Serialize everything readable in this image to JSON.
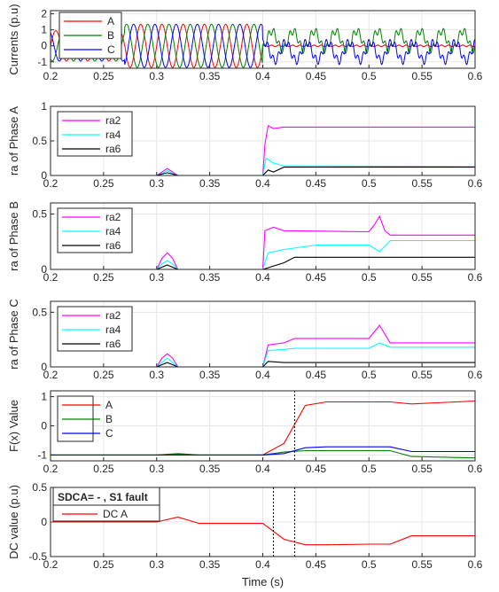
{
  "xlabel": "Time (s)",
  "x_ticks": [
    "0.2",
    "0.25",
    "0.3",
    "0.35",
    "0.4",
    "0.45",
    "0.5",
    "0.55",
    "0.6"
  ],
  "xlim": [
    0.2,
    0.6
  ],
  "colors": {
    "red": "#ff0000",
    "green": "#008000",
    "blue": "#0000ff",
    "magenta": "#ff00ff",
    "cyan": "#00ffff",
    "black": "#000000",
    "axis": "#262626",
    "grid": "#e6e6e6"
  },
  "chart_data": [
    {
      "type": "line",
      "ylabel": "Currents (p.u)",
      "ylim": [
        -1.4,
        2.2
      ],
      "yticks": [
        -1,
        0,
        1,
        2
      ],
      "legend_position": "top-left",
      "series": [
        {
          "name": "A",
          "color": "#ff0000",
          "description": "three-phase currents; amplitude ~0.95 before 0.27 s, ~1.35 between 0.27 s and 0.40 s; after 0.40 s phase A ~0 (open) with small ripple"
        },
        {
          "name": "B",
          "color": "#008000"
        },
        {
          "name": "C",
          "color": "#0000ff"
        }
      ]
    },
    {
      "type": "line",
      "ylabel": "ra of Phase A",
      "ylim": [
        0,
        1
      ],
      "yticks": [
        0,
        0.5,
        1
      ],
      "legend_position": "top-left",
      "series": [
        {
          "name": "ra2",
          "color": "#ff00ff",
          "x": [
            0.2,
            0.3,
            0.305,
            0.31,
            0.315,
            0.32,
            0.4,
            0.402,
            0.405,
            0.41,
            0.42,
            0.6
          ],
          "y": [
            0,
            0,
            0.05,
            0.1,
            0.05,
            0,
            0,
            0.45,
            0.72,
            0.68,
            0.7,
            0.7
          ]
        },
        {
          "name": "ra4",
          "color": "#00ffff",
          "x": [
            0.2,
            0.3,
            0.305,
            0.31,
            0.315,
            0.32,
            0.4,
            0.403,
            0.41,
            0.42,
            0.6
          ],
          "y": [
            0,
            0,
            0.03,
            0.07,
            0.03,
            0,
            0,
            0.25,
            0.18,
            0.14,
            0.13
          ]
        },
        {
          "name": "ra6",
          "color": "#000000",
          "x": [
            0.2,
            0.3,
            0.305,
            0.31,
            0.315,
            0.32,
            0.4,
            0.405,
            0.41,
            0.42,
            0.6
          ],
          "y": [
            0,
            0,
            0.02,
            0.04,
            0.02,
            0,
            0,
            0.08,
            0.05,
            0.12,
            0.12
          ]
        }
      ]
    },
    {
      "type": "line",
      "ylabel": "ra of Phase B",
      "ylim": [
        0,
        0.6
      ],
      "yticks": [
        0,
        0.5
      ],
      "legend_position": "top-left",
      "series": [
        {
          "name": "ra2",
          "color": "#ff00ff",
          "x": [
            0.2,
            0.3,
            0.305,
            0.31,
            0.315,
            0.32,
            0.4,
            0.402,
            0.41,
            0.42,
            0.5,
            0.505,
            0.51,
            0.515,
            0.52,
            0.6
          ],
          "y": [
            0,
            0,
            0.1,
            0.15,
            0.1,
            0,
            0,
            0.35,
            0.38,
            0.35,
            0.34,
            0.4,
            0.48,
            0.35,
            0.31,
            0.31
          ]
        },
        {
          "name": "ra4",
          "color": "#00ffff",
          "x": [
            0.2,
            0.3,
            0.305,
            0.31,
            0.315,
            0.32,
            0.4,
            0.405,
            0.42,
            0.45,
            0.5,
            0.51,
            0.52,
            0.6
          ],
          "y": [
            0,
            0,
            0.05,
            0.08,
            0.05,
            0,
            0,
            0.15,
            0.18,
            0.22,
            0.22,
            0.16,
            0.26,
            0.26
          ]
        },
        {
          "name": "ra6",
          "color": "#000000",
          "x": [
            0.2,
            0.3,
            0.305,
            0.31,
            0.315,
            0.32,
            0.4,
            0.42,
            0.43,
            0.6
          ],
          "y": [
            0,
            0,
            0.02,
            0.04,
            0.02,
            0,
            0,
            0.06,
            0.11,
            0.11
          ]
        }
      ]
    },
    {
      "type": "line",
      "ylabel": "ra of Phase C",
      "ylim": [
        0,
        0.6
      ],
      "yticks": [
        0,
        0.5
      ],
      "legend_position": "top-left",
      "series": [
        {
          "name": "ra2",
          "color": "#ff00ff",
          "x": [
            0.2,
            0.3,
            0.305,
            0.31,
            0.315,
            0.32,
            0.4,
            0.405,
            0.42,
            0.43,
            0.5,
            0.51,
            0.52,
            0.6
          ],
          "y": [
            0,
            0,
            0.08,
            0.12,
            0.08,
            0,
            0,
            0.2,
            0.22,
            0.26,
            0.26,
            0.38,
            0.22,
            0.22
          ]
        },
        {
          "name": "ra4",
          "color": "#00ffff",
          "x": [
            0.2,
            0.3,
            0.305,
            0.31,
            0.315,
            0.32,
            0.4,
            0.405,
            0.42,
            0.43,
            0.5,
            0.51,
            0.52,
            0.6
          ],
          "y": [
            0,
            0,
            0.04,
            0.08,
            0.04,
            0,
            0,
            0.15,
            0.16,
            0.17,
            0.17,
            0.22,
            0.18,
            0.18
          ]
        },
        {
          "name": "ra6",
          "color": "#000000",
          "x": [
            0.2,
            0.3,
            0.305,
            0.31,
            0.315,
            0.32,
            0.4,
            0.405,
            0.42,
            0.6
          ],
          "y": [
            0,
            0,
            0.02,
            0.04,
            0.02,
            0,
            0,
            0.05,
            0.04,
            0.04
          ]
        }
      ]
    },
    {
      "type": "line",
      "ylabel": "F(x) Value",
      "ylim": [
        -1.2,
        1.2
      ],
      "yticks": [
        -1,
        0,
        1
      ],
      "legend_position": "top-left",
      "vlines": [
        0.43
      ],
      "series": [
        {
          "name": "A",
          "color": "#ff0000",
          "x": [
            0.2,
            0.3,
            0.32,
            0.34,
            0.4,
            0.42,
            0.44,
            0.46,
            0.52,
            0.54,
            0.6
          ],
          "y": [
            -1,
            -1,
            -0.95,
            -1,
            -1,
            -0.6,
            0.7,
            0.82,
            0.82,
            0.75,
            0.85
          ]
        },
        {
          "name": "B",
          "color": "#008000",
          "x": [
            0.2,
            0.3,
            0.32,
            0.34,
            0.4,
            0.42,
            0.44,
            0.46,
            0.52,
            0.54,
            0.6
          ],
          "y": [
            -1,
            -1,
            -0.97,
            -1,
            -1,
            -0.9,
            -0.85,
            -0.85,
            -0.85,
            -1.05,
            -1.1
          ]
        },
        {
          "name": "C",
          "color": "#0000ff",
          "x": [
            0.2,
            0.3,
            0.32,
            0.34,
            0.4,
            0.42,
            0.44,
            0.46,
            0.52,
            0.54,
            0.6
          ],
          "y": [
            -1,
            -1,
            -1,
            -1,
            -1,
            -0.95,
            -0.75,
            -0.72,
            -0.72,
            -0.88,
            -0.88
          ]
        }
      ]
    },
    {
      "type": "line",
      "ylabel": "DC value (p.u)",
      "ylim": [
        -0.5,
        0.5
      ],
      "yticks": [
        -0.5,
        0,
        0.5
      ],
      "legend_position": "top-left",
      "annotation": "SDCA= - , S1 fault",
      "vlines": [
        0.41,
        0.43
      ],
      "series": [
        {
          "name": "DC A",
          "color": "#ff0000",
          "x": [
            0.2,
            0.3,
            0.32,
            0.34,
            0.36,
            0.38,
            0.4,
            0.42,
            0.44,
            0.46,
            0.5,
            0.52,
            0.54,
            0.6
          ],
          "y": [
            0,
            0,
            0.07,
            -0.02,
            -0.02,
            -0.02,
            -0.02,
            -0.25,
            -0.33,
            -0.33,
            -0.32,
            -0.32,
            -0.2,
            -0.2
          ]
        }
      ]
    }
  ]
}
